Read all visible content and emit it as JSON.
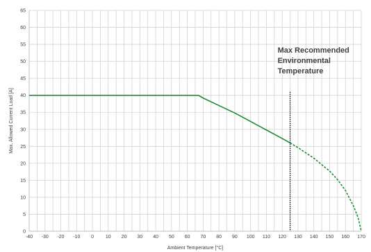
{
  "chart_data": {
    "type": "line",
    "xlabel": "Ambient Temperature [°C]",
    "ylabel": "Max. Allowed Current Load [A]",
    "xlim": [
      -40,
      170
    ],
    "ylim": [
      0,
      65
    ],
    "x_ticks": [
      -40,
      -30,
      -20,
      -10,
      0,
      10,
      20,
      30,
      40,
      50,
      60,
      70,
      80,
      90,
      100,
      110,
      120,
      130,
      140,
      150,
      160,
      170
    ],
    "y_ticks": [
      0,
      5,
      10,
      15,
      20,
      25,
      30,
      35,
      40,
      45,
      50,
      55,
      60,
      65
    ],
    "x_minor_step": 5,
    "grid": true,
    "series": [
      {
        "style": "solid",
        "color": "#1a8a35",
        "x": [
          -40,
          67,
          70,
          80,
          90,
          100,
          110,
          120,
          125
        ],
        "y": [
          40,
          40,
          39.2,
          37,
          34.8,
          32.3,
          29.8,
          27.3,
          26
        ]
      },
      {
        "style": "dashed",
        "color": "#1a8a35",
        "x": [
          125,
          130,
          140,
          150,
          155,
          160,
          165,
          168,
          170
        ],
        "y": [
          26,
          24.6,
          21.5,
          17.7,
          15.2,
          12,
          7.5,
          4,
          0
        ]
      }
    ],
    "annotations": [
      {
        "type": "vline",
        "x": 125,
        "y_top": 41,
        "style": "dotted",
        "color": "#000000",
        "label_lines": [
          "Max Recommended",
          "Environmental",
          "Temperature"
        ]
      }
    ]
  }
}
